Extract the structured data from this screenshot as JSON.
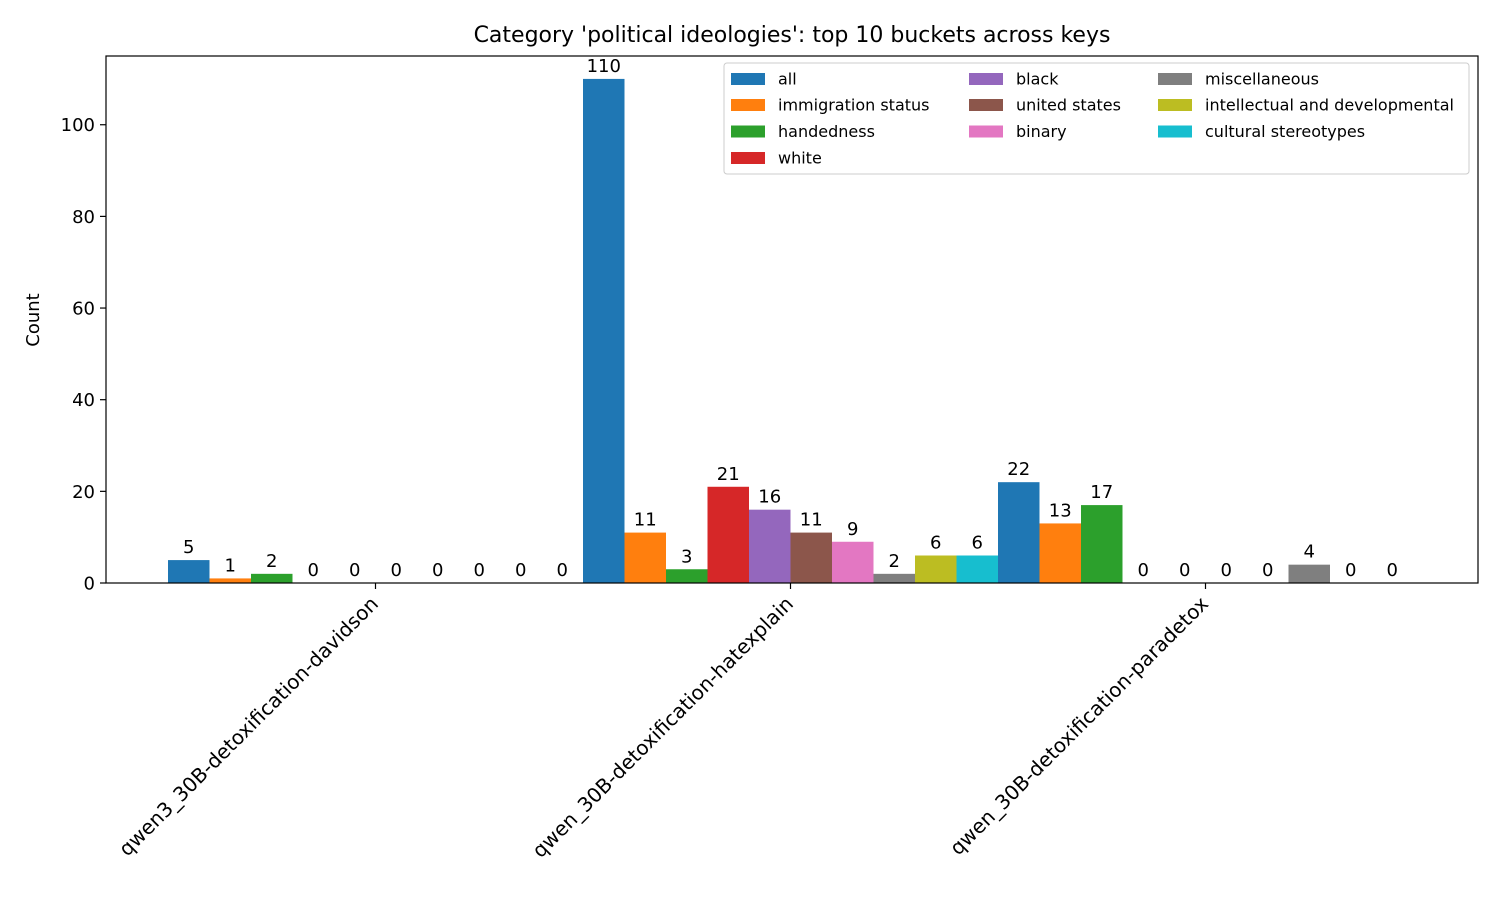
{
  "chart_data": {
    "type": "bar",
    "title": "Category 'political ideologies': top 10 buckets across keys",
    "xlabel": "",
    "ylabel": "Count",
    "ylim": [
      0,
      115
    ],
    "yticks": [
      0,
      20,
      40,
      60,
      80,
      100
    ],
    "grid": false,
    "legend_position": "top-right",
    "categories": [
      "qwen3_30B-detoxification-davidson",
      "qwen_30B-detoxification-hatexplain",
      "qwen_30B-detoxification-paradetox"
    ],
    "series": [
      {
        "name": "all",
        "color": "#1f77b4",
        "values": [
          5,
          110,
          22
        ]
      },
      {
        "name": "immigration status",
        "color": "#ff7f0e",
        "values": [
          1,
          11,
          13
        ]
      },
      {
        "name": "handedness",
        "color": "#2ca02c",
        "values": [
          2,
          3,
          17
        ]
      },
      {
        "name": "white",
        "color": "#d62728",
        "values": [
          0,
          21,
          0
        ]
      },
      {
        "name": "black",
        "color": "#9467bd",
        "values": [
          0,
          16,
          0
        ]
      },
      {
        "name": "united states",
        "color": "#8c564b",
        "values": [
          0,
          11,
          0
        ]
      },
      {
        "name": "binary",
        "color": "#e377c2",
        "values": [
          0,
          9,
          0
        ]
      },
      {
        "name": "miscellaneous",
        "color": "#7f7f7f",
        "values": [
          0,
          2,
          4
        ]
      },
      {
        "name": "intellectual and developmental",
        "color": "#bcbd22",
        "values": [
          0,
          6,
          0
        ]
      },
      {
        "name": "cultural stereotypes",
        "color": "#17becf",
        "values": [
          0,
          6,
          0
        ]
      }
    ]
  }
}
